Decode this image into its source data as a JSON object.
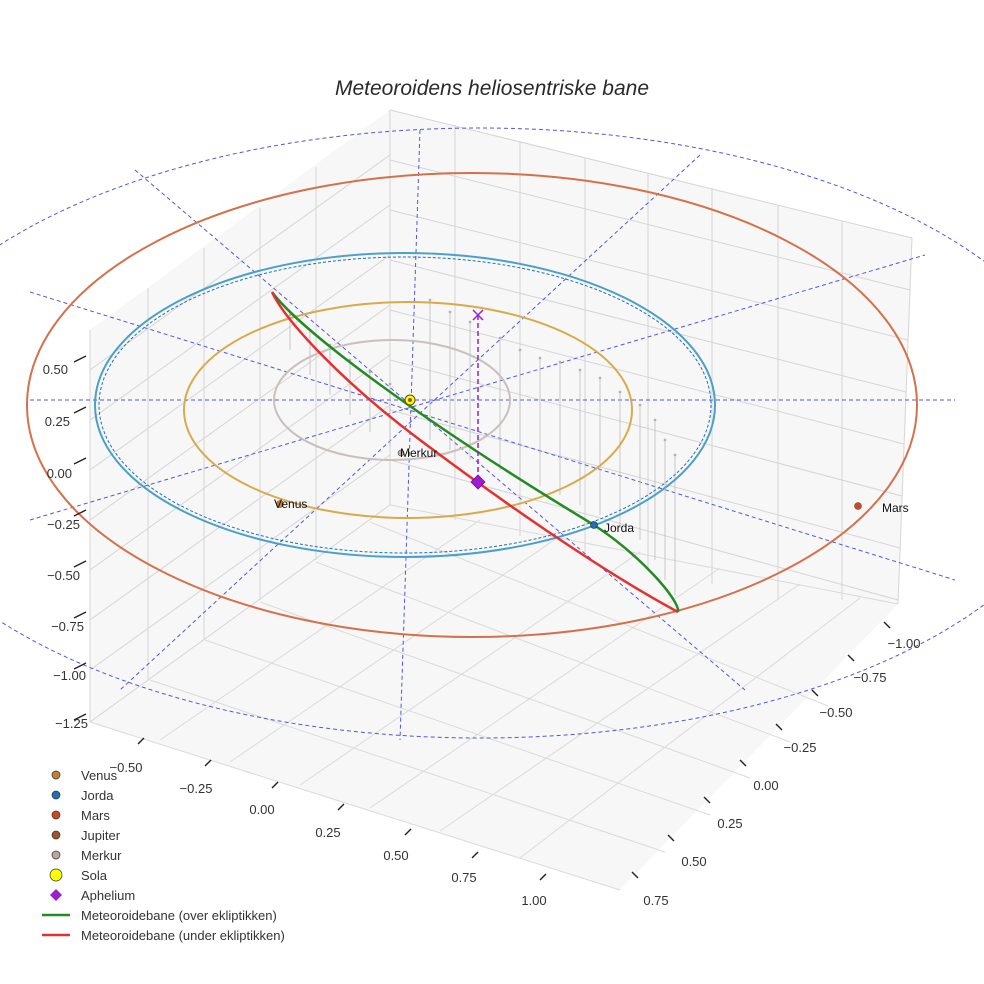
{
  "chart_data": {
    "type": "scatter3d",
    "title": "Meteoroidens heliosentriske bane",
    "axes": {
      "x": {
        "ticks": [
          "−0.50",
          "−0.25",
          "0.00",
          "0.25",
          "0.50",
          "0.75",
          "1.00"
        ]
      },
      "y": {
        "ticks": [
          "−1.00",
          "−0.75",
          "−0.50",
          "−0.25",
          "0.00",
          "0.25",
          "0.50",
          "0.75"
        ]
      },
      "z": {
        "ticks": [
          "0.50",
          "0.25",
          "0.00",
          "−0.25",
          "−0.50",
          "−0.75",
          "−1.00",
          "−1.25"
        ]
      }
    },
    "planet_labels": [
      {
        "name": "Merkur"
      },
      {
        "name": "Venus"
      },
      {
        "name": "Jorda"
      },
      {
        "name": "Mars"
      }
    ],
    "legend": [
      {
        "label": "Venus",
        "marker": "circle",
        "color": "#c87f2e"
      },
      {
        "label": "Jorda",
        "marker": "circle",
        "color": "#1f6fb4"
      },
      {
        "label": "Mars",
        "marker": "circle",
        "color": "#d1461e"
      },
      {
        "label": "Jupiter",
        "marker": "circle",
        "color": "#a0522d"
      },
      {
        "label": "Merkur",
        "marker": "circle",
        "color": "#b8a8a0"
      },
      {
        "label": "Sola",
        "marker": "circle-large",
        "color": "#ffff00"
      },
      {
        "label": "Aphelium",
        "marker": "diamond",
        "color": "#9b1fd1"
      },
      {
        "label": "Meteoroidebane (over ekliptikken)",
        "marker": "line",
        "color": "#228b22"
      },
      {
        "label": "Meteoroidebane (under ekliptikken)",
        "marker": "line",
        "color": "#e53030"
      }
    ],
    "orbit_colors": {
      "merkur": "#c8c0bc",
      "venus": "#d9aa4a",
      "jorda": "#4aa0c8",
      "jorda_inner": "#1f6fb4",
      "mars": "#d4714a",
      "grid_dashed": "#5555dd"
    }
  }
}
